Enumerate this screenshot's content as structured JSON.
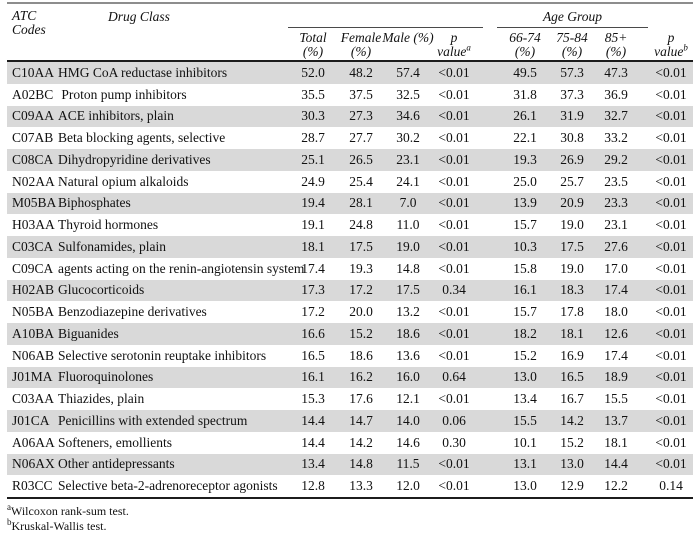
{
  "table": {
    "header": {
      "atc_line1": "ATC",
      "atc_line2": "Codes",
      "drug_class": "Drug Class",
      "age_group": "Age Group",
      "stats": [
        {
          "line1": "Total",
          "line2": "(%)",
          "sup": ""
        },
        {
          "line1": "Female",
          "line2": "(%)",
          "sup": ""
        },
        {
          "line1": "Male (%)",
          "line2": "",
          "sup": ""
        },
        {
          "line1": "p",
          "line2": "value",
          "sup": "a"
        },
        {
          "line1": "66-74",
          "line2": "(%)",
          "sup": ""
        },
        {
          "line1": "75-84",
          "line2": "(%)",
          "sup": ""
        },
        {
          "line1": "85+",
          "line2": "(%)",
          "sup": ""
        },
        {
          "line1": "p",
          "line2": "value",
          "sup": "b"
        }
      ]
    },
    "rows": [
      {
        "code": "C10AA",
        "drug_class": "HMG CoA reductase inhibitors",
        "values": [
          "52.0",
          "48.2",
          "57.4",
          "<0.01",
          "49.5",
          "57.3",
          "47.3",
          "<0.01"
        ]
      },
      {
        "code": "A02BC",
        "drug_class": " Proton pump inhibitors",
        "values": [
          "35.5",
          "37.5",
          "32.5",
          "<0.01",
          "31.8",
          "37.3",
          "36.9",
          "<0.01"
        ]
      },
      {
        "code": "C09AA",
        "drug_class": "ACE inhibitors, plain",
        "values": [
          "30.3",
          "27.3",
          "34.6",
          "<0.01",
          "26.1",
          "31.9",
          "32.7",
          "<0.01"
        ]
      },
      {
        "code": "C07AB",
        "drug_class": "Beta blocking agents, selective",
        "values": [
          "28.7",
          "27.7",
          "30.2",
          "<0.01",
          "22.1",
          "30.8",
          "33.2",
          "<0.01"
        ]
      },
      {
        "code": "C08CA",
        "drug_class": "Dihydropyridine derivatives",
        "values": [
          "25.1",
          "26.5",
          "23.1",
          "<0.01",
          "19.3",
          "26.9",
          "29.2",
          "<0.01"
        ]
      },
      {
        "code": "N02AA",
        "drug_class": "Natural opium alkaloids",
        "values": [
          "24.9",
          "25.4",
          "24.1",
          "<0.01",
          "25.0",
          "25.7",
          "23.5",
          "<0.01"
        ]
      },
      {
        "code": "M05BA",
        "drug_class": "Biphosphates",
        "values": [
          "19.4",
          "28.1",
          "7.0",
          "<0.01",
          "13.9",
          "20.9",
          "23.3",
          "<0.01"
        ]
      },
      {
        "code": "H03AA",
        "drug_class": "Thyroid hormones",
        "values": [
          "19.1",
          "24.8",
          "11.0",
          "<0.01",
          "15.7",
          "19.0",
          "23.1",
          "<0.01"
        ]
      },
      {
        "code": "C03CA",
        "drug_class": "Sulfonamides, plain",
        "values": [
          "18.1",
          "17.5",
          "19.0",
          "<0.01",
          "10.3",
          "17.5",
          "27.6",
          "<0.01"
        ]
      },
      {
        "code": "C09CA",
        "drug_class": "agents acting on the renin-angiotensin system",
        "values": [
          "17.4",
          "19.3",
          "14.8",
          "<0.01",
          "15.8",
          "19.0",
          "17.0",
          "<0.01"
        ]
      },
      {
        "code": "H02AB",
        "drug_class": "Glucocorticoids",
        "values": [
          "17.3",
          "17.2",
          "17.5",
          "0.34",
          "16.1",
          "18.3",
          "17.4",
          "<0.01"
        ]
      },
      {
        "code": "N05BA",
        "drug_class": "Benzodiazepine derivatives",
        "values": [
          "17.2",
          "20.0",
          "13.2",
          "<0.01",
          "15.7",
          "17.8",
          "18.0",
          "<0.01"
        ]
      },
      {
        "code": "A10BA",
        "drug_class": "Biguanides",
        "values": [
          "16.6",
          "15.2",
          "18.6",
          "<0.01",
          "18.2",
          "18.1",
          "12.6",
          "<0.01"
        ]
      },
      {
        "code": "N06AB",
        "drug_class": "Selective serotonin reuptake inhibitors",
        "values": [
          "16.5",
          "18.6",
          "13.6",
          "<0.01",
          "15.2",
          "16.9",
          "17.4",
          "<0.01"
        ]
      },
      {
        "code": "J01MA",
        "drug_class": "Fluoroquinolones",
        "values": [
          "16.1",
          "16.2",
          "16.0",
          "0.64",
          "13.0",
          "16.5",
          "18.9",
          "<0.01"
        ]
      },
      {
        "code": "C03AA",
        "drug_class": "Thiazides, plain",
        "values": [
          "15.3",
          "17.6",
          "12.1",
          "<0.01",
          "13.4",
          "16.7",
          "15.5",
          "<0.01"
        ]
      },
      {
        "code": "J01CA",
        "drug_class": "Penicillins with extended spectrum",
        "values": [
          "14.4",
          "14.7",
          "14.0",
          "0.06",
          "15.5",
          "14.2",
          "13.7",
          "<0.01"
        ]
      },
      {
        "code": "A06AA",
        "drug_class": "Softeners, emollients",
        "values": [
          "14.4",
          "14.2",
          "14.6",
          "0.30",
          "10.1",
          "15.2",
          "18.1",
          "<0.01"
        ]
      },
      {
        "code": "N06AX",
        "drug_class": "Other antidepressants",
        "values": [
          "13.4",
          "14.8",
          "11.5",
          "<0.01",
          "13.1",
          "13.0",
          "14.4",
          "<0.01"
        ]
      },
      {
        "code": "R03CC",
        "drug_class": "Selective beta-2-adrenoreceptor agonists",
        "values": [
          "12.8",
          "13.3",
          "12.0",
          "<0.01",
          "13.0",
          "12.9",
          "12.2",
          "0.14"
        ]
      }
    ],
    "footnotes": [
      {
        "sup": "a",
        "text": "Wilcoxon rank-sum test."
      },
      {
        "sup": "b",
        "text": "Kruskal-Wallis test."
      }
    ]
  },
  "colors": {
    "row_shade": "#d9d9d9",
    "row_plain": "#ffffff",
    "rule_dark": "#1c1c1c",
    "rule_gray": "#8d8d8d"
  }
}
